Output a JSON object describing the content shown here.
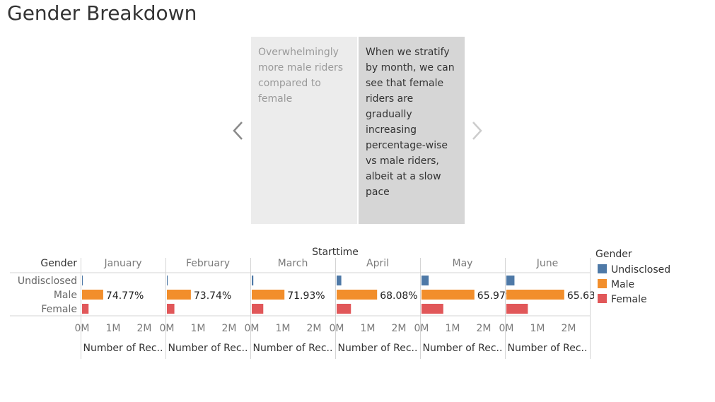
{
  "story": {
    "title": "Gender Breakdown",
    "points": [
      {
        "text": "Overwhelmingly more male riders compared to female"
      },
      {
        "text": "When we stratify by month, we can see that female riders are gradually increasing percentage-wise vs male riders, albeit at a slow pace"
      }
    ],
    "prev_icon": "chevron-left-icon",
    "next_icon": "chevron-right-icon"
  },
  "colors": {
    "Undisclosed": "#4e79a7",
    "Male": "#f28e2b",
    "Female": "#e15759",
    "active_point": "#d6d6d6",
    "inactive_point": "#ececec"
  },
  "legend": {
    "title": "Gender",
    "items": [
      "Undisclosed",
      "Male",
      "Female"
    ]
  },
  "chart_data": {
    "type": "bar",
    "orientation": "horizontal",
    "title": "Starttime",
    "row_header": "Gender",
    "rows": [
      "Undisclosed",
      "Male",
      "Female"
    ],
    "panels": [
      "January",
      "February",
      "March",
      "April",
      "May",
      "June"
    ],
    "xlabel": "Number of Rec..",
    "xticks": [
      "0M",
      "1M",
      "2M"
    ],
    "xlim": [
      0,
      2500000
    ],
    "grid": false,
    "legend_position": "right",
    "series": [
      {
        "name": "Undisclosed",
        "values": [
          8000,
          25000,
          50000,
          150000,
          230000,
          260000
        ]
      },
      {
        "name": "Male",
        "values": [
          680000,
          770000,
          1050000,
          1300000,
          1700000,
          1860000
        ]
      },
      {
        "name": "Female",
        "values": [
          210000,
          240000,
          370000,
          460000,
          700000,
          690000
        ]
      }
    ],
    "data_labels": {
      "Male": [
        "74.77%",
        "73.74%",
        "71.93%",
        "68.08%",
        "65.97%",
        "65.63%"
      ]
    }
  }
}
